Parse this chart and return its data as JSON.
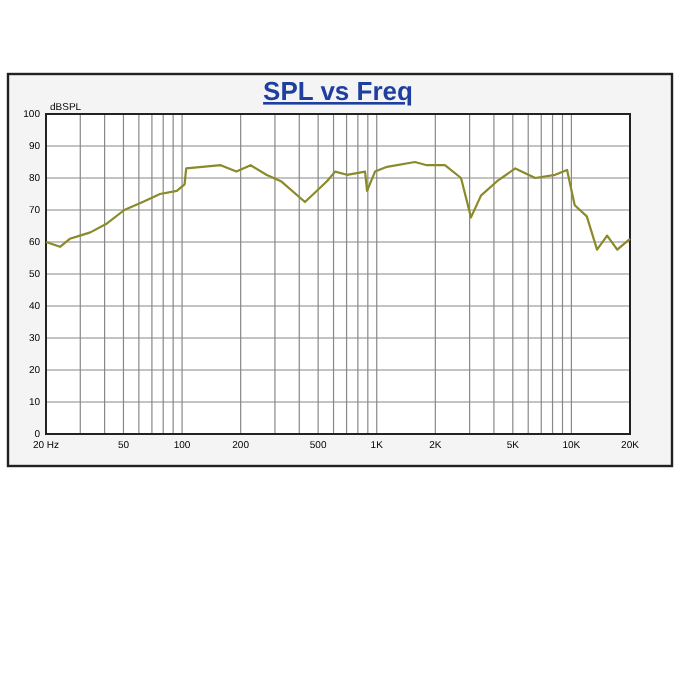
{
  "chart_data": {
    "type": "line",
    "title": "SPL vs Freq",
    "ylabel": "dBSPL",
    "log": "x",
    "xlim": [
      20,
      20000
    ],
    "ylim": [
      0,
      100
    ],
    "xticks": [
      {
        "value": 20,
        "label": "20 Hz"
      },
      {
        "value": 30,
        "label": null
      },
      {
        "value": 40,
        "label": null
      },
      50,
      {
        "value": 60,
        "label": null
      },
      {
        "value": 70,
        "label": null
      },
      {
        "value": 80,
        "label": null
      },
      {
        "value": 90,
        "label": null
      },
      100,
      200,
      {
        "value": 300,
        "label": null
      },
      {
        "value": 400,
        "label": null
      },
      500,
      {
        "value": 600,
        "label": null
      },
      {
        "value": 700,
        "label": null
      },
      {
        "value": 800,
        "label": null
      },
      {
        "value": 900,
        "label": null
      },
      {
        "value": 1000,
        "label": "1K"
      },
      {
        "value": 2000,
        "label": "2K"
      },
      {
        "value": 3000,
        "label": null
      },
      {
        "value": 4000,
        "label": null
      },
      {
        "value": 5000,
        "label": "5K"
      },
      {
        "value": 6000,
        "label": null
      },
      {
        "value": 7000,
        "label": null
      },
      {
        "value": 8000,
        "label": null
      },
      {
        "value": 9000,
        "label": null
      },
      {
        "value": 10000,
        "label": "10K"
      },
      {
        "value": 20000,
        "label": "20K"
      }
    ],
    "yticks": [
      0,
      10,
      20,
      30,
      40,
      50,
      60,
      70,
      80,
      90,
      100
    ],
    "grid": true,
    "line_style": "solid",
    "marker": "none",
    "x": [
      20,
      23.6,
      26.5,
      29.9,
      33.8,
      40.7,
      50.5,
      64,
      77,
      94,
      103,
      105,
      158,
      190,
      225,
      271,
      322,
      428,
      555,
      611,
      704,
      871,
      892,
      980,
      1130,
      1570,
      1810,
      2240,
      2710,
      3050,
      3430,
      4150,
      5150,
      6520,
      8250,
      9500,
      10400,
      12000,
      13540,
      15260,
      17200,
      20000
    ],
    "series": [
      {
        "color": "#8a8a2a",
        "values": [
          60,
          58.5,
          61,
          62,
          63,
          65.6,
          70,
          72.7,
          75,
          76,
          78,
          83,
          84,
          82,
          84,
          81,
          79,
          72.5,
          79,
          82,
          81,
          82,
          76,
          82,
          83.5,
          85,
          84,
          84,
          80,
          67.7,
          74.5,
          79,
          83,
          80,
          81,
          82.5,
          71.5,
          68,
          57.6,
          62,
          57.6,
          61
        ]
      }
    ]
  }
}
